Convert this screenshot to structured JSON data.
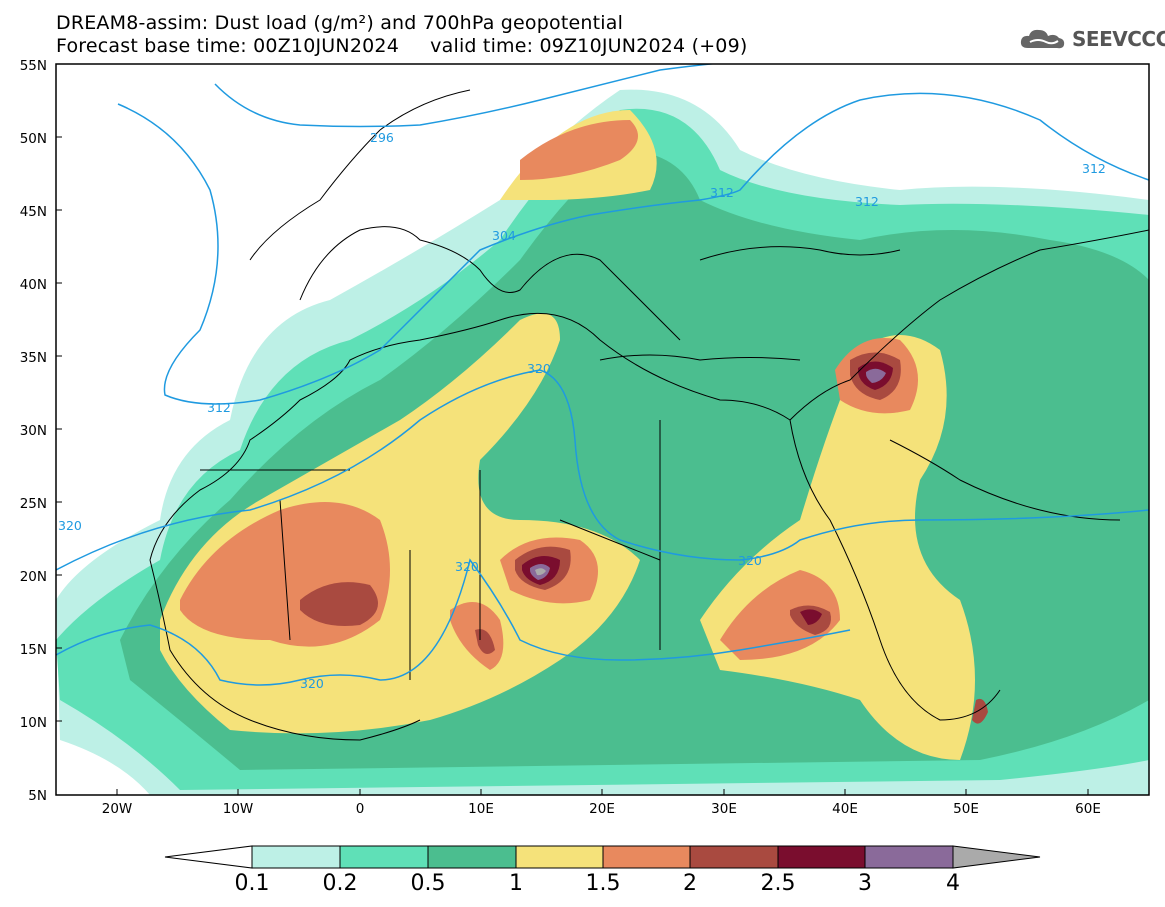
{
  "header": {
    "title_line1": "DREAM8-assim: Dust load (g/m²) and 700hPa geopotential",
    "title_line2": "Forecast base time: 00Z10JUN2024     valid time: 09Z10JUN2024 (+09)"
  },
  "logo": {
    "text": "SEEVCCC",
    "icon": "cloud-icon"
  },
  "map": {
    "lat_labels": [
      "55N",
      "50N",
      "45N",
      "40N",
      "35N",
      "30N",
      "25N",
      "20N",
      "15N",
      "10N",
      "5N"
    ],
    "lon_labels": [
      "20W",
      "10W",
      "0",
      "10E",
      "20E",
      "30E",
      "40E",
      "50E",
      "60E"
    ],
    "contour_labels": [
      "296",
      "304",
      "312",
      "312",
      "312",
      "320",
      "320",
      "320",
      "320",
      "320"
    ]
  },
  "colorbar": {
    "labels": [
      "0.1",
      "0.2",
      "0.5",
      "1",
      "1.5",
      "2",
      "2.5",
      "3",
      "4"
    ],
    "colors": [
      "#bdf0e6",
      "#5fe0b7",
      "#4bbe8f",
      "#f5e27a",
      "#e8895e",
      "#a94a40",
      "#7a0d2e",
      "#8a6a9a",
      "#aaaaaa"
    ]
  }
}
